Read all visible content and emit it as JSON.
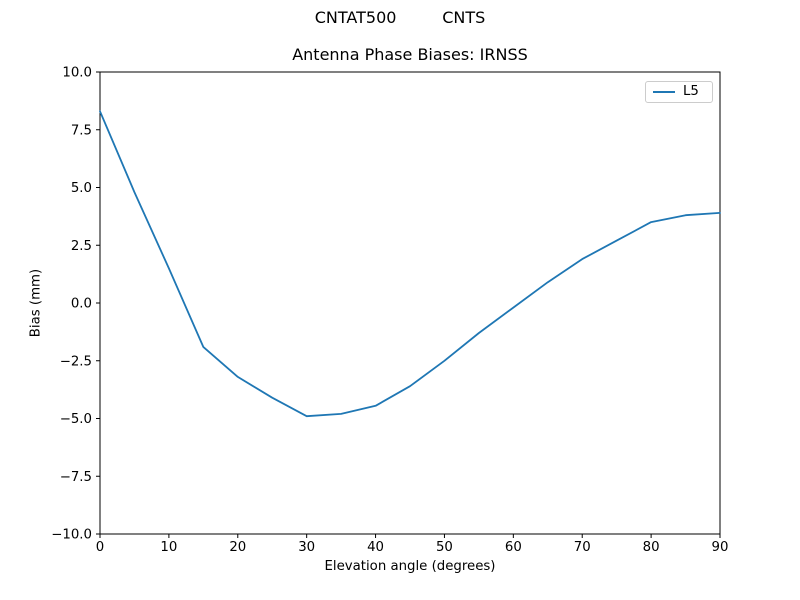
{
  "figure": {
    "suptitle": "CNTAT500         CNTS",
    "background": "#ffffff"
  },
  "chart_data": {
    "type": "line",
    "title": "Antenna Phase Biases: IRNSS",
    "xlabel": "Elevation angle (degrees)",
    "ylabel": "Bias (mm)",
    "xlim": [
      0,
      90
    ],
    "ylim": [
      -10,
      10
    ],
    "xticks": [
      0,
      10,
      20,
      30,
      40,
      50,
      60,
      70,
      80,
      90
    ],
    "xtick_labels": [
      "0",
      "10",
      "20",
      "30",
      "40",
      "50",
      "60",
      "70",
      "80",
      "90"
    ],
    "yticks": [
      -10,
      -7.5,
      -5,
      -2.5,
      0,
      2.5,
      5,
      7.5,
      10
    ],
    "ytick_labels": [
      "−10.0",
      "−7.5",
      "−5.0",
      "−2.5",
      "0.0",
      "2.5",
      "5.0",
      "7.5",
      "10.0"
    ],
    "grid": false,
    "axis_color": "#000000",
    "legend": {
      "position": "upper right",
      "entries": [
        {
          "label": "L5",
          "color": "#1f77b4"
        }
      ]
    },
    "series": [
      {
        "name": "L5",
        "color": "#1f77b4",
        "x": [
          0,
          5,
          10,
          15,
          20,
          25,
          30,
          35,
          40,
          45,
          50,
          55,
          60,
          65,
          70,
          75,
          80,
          85,
          90
        ],
        "y": [
          8.3,
          4.8,
          1.5,
          -1.9,
          -3.2,
          -4.1,
          -4.9,
          -4.8,
          -4.45,
          -3.6,
          -2.5,
          -1.3,
          -0.2,
          0.9,
          1.9,
          2.7,
          3.5,
          3.8,
          3.9
        ]
      }
    ]
  }
}
